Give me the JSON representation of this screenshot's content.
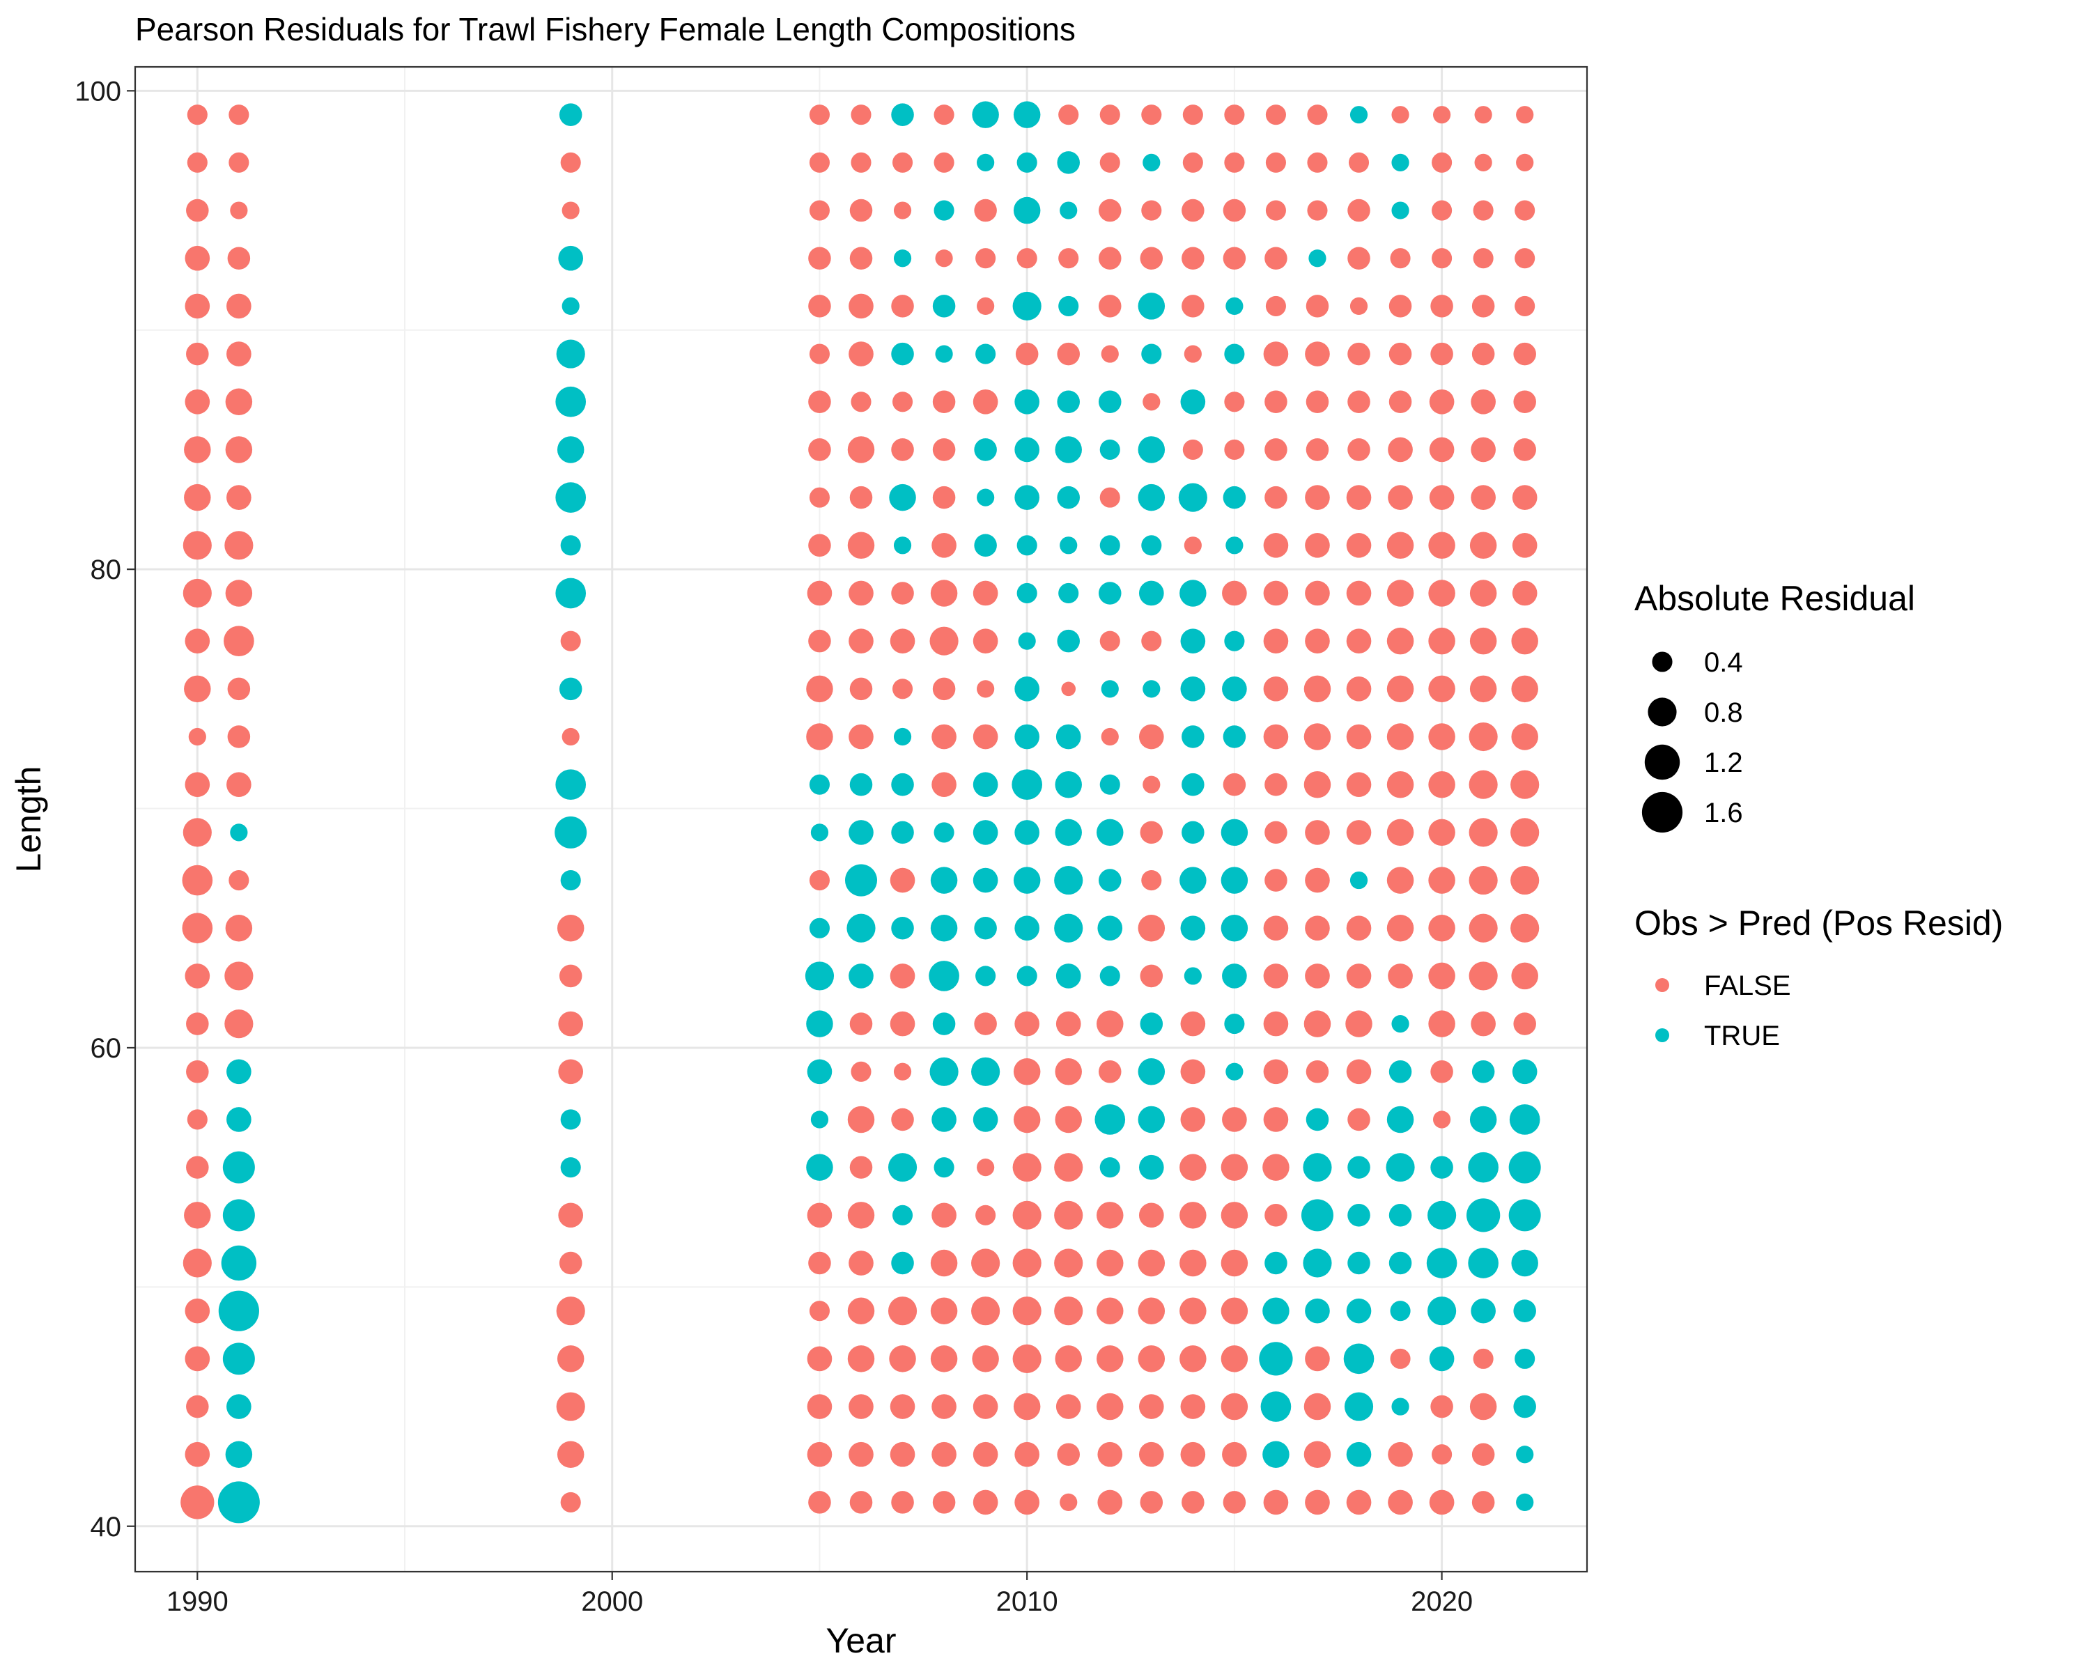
{
  "chart_data": {
    "type": "scatter",
    "title": "Pearson Residuals for Trawl Fishery Female Length Compositions",
    "xlabel": "Year",
    "ylabel": "Length",
    "xlim": [
      1988.5,
      2023.5
    ],
    "ylim": [
      38.1,
      101
    ],
    "xticks": [
      "1990",
      "2000",
      "2010",
      "2020"
    ],
    "yticks": [
      "40",
      "60",
      "80",
      "100"
    ],
    "grid": true,
    "legend_position": "right",
    "colors": {
      "FALSE": "#F8766D",
      "TRUE": "#00BFC4",
      "size_key": "#000000"
    },
    "size_legend": {
      "title": "Absolute Residual",
      "values": [
        0.4,
        0.8,
        1.2,
        1.6
      ],
      "labels": [
        "0.4",
        "0.8",
        "1.2",
        "1.6"
      ]
    },
    "color_legend": {
      "title": "Obs > Pred (Pos Resid)",
      "labels": [
        "FALSE",
        "TRUE"
      ]
    },
    "lengths": [
      41,
      43,
      45,
      47,
      49,
      51,
      53,
      55,
      57,
      59,
      61,
      63,
      65,
      67,
      69,
      71,
      73,
      75,
      77,
      79,
      81,
      83,
      85,
      87,
      89,
      91,
      93,
      95,
      97,
      99
    ],
    "series": [
      {
        "year": 1990,
        "r": [
          -1.1,
          -0.6,
          -0.5,
          -0.6,
          -0.6,
          -0.8,
          -0.7,
          -0.5,
          -0.4,
          -0.5,
          -0.5,
          -0.6,
          -0.9,
          -0.9,
          -0.8,
          -0.6,
          -0.3,
          -0.7,
          -0.6,
          -0.8,
          -0.8,
          -0.7,
          -0.7,
          -0.6,
          -0.5,
          -0.6,
          -0.6,
          -0.5,
          -0.4,
          -0.4
        ]
      },
      {
        "year": 1991,
        "r": [
          1.7,
          0.7,
          0.6,
          1.0,
          1.6,
          1.2,
          1.0,
          1.0,
          0.6,
          0.6,
          -0.8,
          -0.8,
          -0.7,
          -0.4,
          0.3,
          -0.6,
          -0.5,
          -0.5,
          -0.9,
          -0.7,
          -0.8,
          -0.6,
          -0.7,
          -0.7,
          -0.6,
          -0.6,
          -0.5,
          -0.3,
          -0.4,
          -0.4
        ]
      },
      {
        "year": 1999,
        "r": [
          -0.4,
          -0.7,
          -0.8,
          -0.7,
          -0.8,
          -0.5,
          -0.6,
          0.4,
          0.4,
          -0.6,
          -0.6,
          -0.5,
          -0.7,
          0.4,
          1.0,
          0.9,
          -0.3,
          0.5,
          -0.4,
          0.9,
          0.4,
          0.9,
          0.7,
          0.9,
          0.8,
          0.3,
          0.6,
          -0.3,
          -0.4,
          0.5
        ]
      },
      {
        "year": 2005,
        "r": [
          -0.5,
          -0.6,
          -0.6,
          -0.6,
          -0.4,
          -0.5,
          -0.6,
          0.7,
          0.3,
          0.6,
          0.7,
          0.8,
          0.4,
          -0.4,
          0.3,
          0.4,
          -0.7,
          -0.7,
          -0.5,
          -0.6,
          -0.5,
          -0.4,
          -0.5,
          -0.5,
          -0.4,
          -0.5,
          -0.5,
          -0.4,
          -0.4,
          -0.4
        ]
      },
      {
        "year": 2006,
        "r": [
          -0.5,
          -0.6,
          -0.6,
          -0.7,
          -0.7,
          -0.6,
          -0.7,
          -0.5,
          -0.7,
          -0.4,
          -0.5,
          0.6,
          0.8,
          1.0,
          0.6,
          0.5,
          -0.6,
          -0.5,
          -0.6,
          -0.6,
          -0.7,
          -0.5,
          -0.7,
          -0.4,
          -0.6,
          -0.6,
          -0.5,
          -0.5,
          -0.4,
          -0.4
        ]
      },
      {
        "year": 2007,
        "r": [
          -0.5,
          -0.6,
          -0.6,
          -0.7,
          -0.8,
          0.5,
          0.4,
          0.8,
          -0.5,
          -0.3,
          -0.6,
          -0.6,
          0.5,
          -0.6,
          0.5,
          0.5,
          0.3,
          -0.4,
          -0.6,
          -0.5,
          0.3,
          0.7,
          -0.5,
          -0.4,
          0.5,
          -0.5,
          0.3,
          -0.3,
          -0.4,
          0.5
        ]
      },
      {
        "year": 2008,
        "r": [
          -0.5,
          -0.6,
          -0.6,
          -0.7,
          -0.7,
          -0.7,
          -0.6,
          0.4,
          0.6,
          0.8,
          0.5,
          0.9,
          0.7,
          0.7,
          0.4,
          -0.6,
          -0.6,
          -0.5,
          -0.8,
          -0.7,
          -0.6,
          -0.5,
          -0.5,
          -0.5,
          0.3,
          0.5,
          -0.3,
          0.4,
          -0.4,
          -0.4
        ]
      },
      {
        "year": 2009,
        "r": [
          -0.6,
          -0.6,
          -0.6,
          -0.7,
          -0.8,
          -0.8,
          -0.4,
          -0.3,
          0.6,
          0.8,
          -0.5,
          0.4,
          0.5,
          0.6,
          0.6,
          0.6,
          -0.6,
          -0.3,
          -0.6,
          -0.6,
          0.5,
          0.3,
          0.5,
          -0.6,
          0.4,
          -0.3,
          -0.4,
          -0.5,
          0.3,
          0.7
        ]
      },
      {
        "year": 2010,
        "r": [
          -0.6,
          -0.6,
          -0.7,
          -0.8,
          -0.8,
          -0.8,
          -0.8,
          -0.8,
          -0.7,
          -0.7,
          -0.6,
          0.4,
          0.6,
          0.7,
          0.6,
          0.9,
          0.6,
          0.6,
          0.3,
          0.4,
          0.4,
          0.6,
          0.6,
          0.6,
          -0.5,
          0.8,
          -0.4,
          0.7,
          0.4,
          0.7
        ]
      },
      {
        "year": 2011,
        "r": [
          -0.3,
          -0.5,
          -0.6,
          -0.7,
          -0.8,
          -0.8,
          -0.8,
          -0.8,
          -0.7,
          -0.7,
          -0.6,
          0.6,
          0.8,
          0.8,
          0.7,
          0.7,
          0.6,
          -0.2,
          0.5,
          0.4,
          0.3,
          0.5,
          0.7,
          0.5,
          -0.5,
          0.4,
          -0.4,
          0.3,
          0.5,
          -0.4
        ]
      },
      {
        "year": 2012,
        "r": [
          -0.6,
          -0.6,
          -0.7,
          -0.7,
          -0.7,
          -0.7,
          -0.7,
          0.4,
          0.9,
          -0.5,
          -0.7,
          0.4,
          0.6,
          0.5,
          0.7,
          0.4,
          -0.3,
          0.3,
          -0.4,
          0.5,
          0.4,
          -0.4,
          0.4,
          0.5,
          -0.3,
          -0.5,
          -0.5,
          -0.5,
          -0.4,
          -0.4
        ]
      },
      {
        "year": 2013,
        "r": [
          -0.5,
          -0.6,
          -0.6,
          -0.7,
          -0.7,
          -0.7,
          -0.6,
          0.6,
          0.7,
          0.7,
          0.5,
          -0.5,
          -0.7,
          -0.4,
          -0.5,
          -0.3,
          -0.6,
          0.3,
          -0.4,
          0.6,
          0.4,
          0.7,
          0.7,
          -0.3,
          0.4,
          0.7,
          -0.5,
          -0.4,
          0.3,
          -0.4
        ]
      },
      {
        "year": 2014,
        "r": [
          -0.5,
          -0.6,
          -0.6,
          -0.7,
          -0.7,
          -0.7,
          -0.7,
          -0.7,
          -0.6,
          -0.6,
          -0.6,
          0.3,
          0.6,
          0.7,
          0.5,
          0.5,
          0.5,
          0.6,
          0.6,
          0.7,
          -0.3,
          0.8,
          -0.4,
          0.6,
          -0.3,
          -0.5,
          -0.5,
          -0.5,
          -0.4,
          -0.4
        ]
      },
      {
        "year": 2015,
        "r": [
          -0.5,
          -0.6,
          -0.7,
          -0.7,
          -0.7,
          -0.7,
          -0.7,
          -0.7,
          -0.6,
          0.3,
          0.4,
          0.6,
          0.7,
          0.7,
          0.7,
          -0.5,
          0.5,
          0.6,
          0.4,
          -0.6,
          0.3,
          0.5,
          -0.4,
          -0.4,
          0.4,
          0.3,
          -0.5,
          -0.5,
          -0.4,
          -0.4
        ]
      },
      {
        "year": 2016,
        "r": [
          -0.6,
          0.7,
          0.9,
          1.1,
          0.7,
          0.5,
          -0.5,
          -0.7,
          -0.6,
          -0.6,
          -0.6,
          -0.6,
          -0.6,
          -0.5,
          -0.5,
          -0.5,
          -0.6,
          -0.6,
          -0.6,
          -0.6,
          -0.6,
          -0.5,
          -0.5,
          -0.5,
          -0.6,
          -0.4,
          -0.5,
          -0.4,
          -0.4,
          -0.4
        ]
      },
      {
        "year": 2017,
        "r": [
          -0.6,
          -0.7,
          -0.7,
          -0.6,
          0.6,
          0.8,
          1.0,
          0.8,
          0.5,
          -0.5,
          -0.7,
          -0.6,
          -0.6,
          -0.6,
          -0.6,
          -0.7,
          -0.7,
          -0.7,
          -0.6,
          -0.6,
          -0.6,
          -0.6,
          -0.5,
          -0.5,
          -0.6,
          -0.5,
          0.3,
          -0.4,
          -0.4,
          -0.4
        ]
      },
      {
        "year": 2018,
        "r": [
          -0.6,
          0.6,
          0.8,
          0.9,
          0.6,
          0.5,
          0.5,
          0.5,
          -0.5,
          -0.6,
          -0.7,
          -0.6,
          -0.6,
          0.3,
          -0.6,
          -0.6,
          -0.6,
          -0.6,
          -0.6,
          -0.6,
          -0.6,
          -0.6,
          -0.5,
          -0.5,
          -0.5,
          -0.3,
          -0.5,
          -0.5,
          -0.4,
          0.3
        ]
      },
      {
        "year": 2019,
        "r": [
          -0.6,
          -0.6,
          0.3,
          -0.4,
          0.4,
          0.5,
          0.5,
          0.8,
          0.7,
          0.5,
          0.3,
          -0.6,
          -0.7,
          -0.7,
          -0.7,
          -0.7,
          -0.7,
          -0.7,
          -0.7,
          -0.7,
          -0.7,
          -0.6,
          -0.6,
          -0.5,
          -0.5,
          -0.5,
          -0.4,
          0.3,
          0.3,
          -0.3
        ]
      },
      {
        "year": 2020,
        "r": [
          -0.6,
          -0.4,
          -0.5,
          0.6,
          0.8,
          0.9,
          0.8,
          0.5,
          -0.3,
          -0.5,
          -0.7,
          -0.7,
          -0.7,
          -0.7,
          -0.7,
          -0.7,
          -0.7,
          -0.7,
          -0.7,
          -0.7,
          -0.7,
          -0.6,
          -0.6,
          -0.6,
          -0.5,
          -0.5,
          -0.4,
          -0.4,
          -0.4,
          -0.3
        ]
      },
      {
        "year": 2021,
        "r": [
          -0.5,
          -0.5,
          -0.7,
          -0.4,
          0.6,
          0.9,
          1.1,
          0.9,
          0.7,
          0.5,
          -0.6,
          -0.8,
          -0.8,
          -0.8,
          -0.8,
          -0.8,
          -0.8,
          -0.7,
          -0.7,
          -0.7,
          -0.7,
          -0.6,
          -0.6,
          -0.6,
          -0.5,
          -0.5,
          -0.4,
          -0.4,
          -0.3,
          -0.3
        ]
      },
      {
        "year": 2022,
        "r": [
          0.3,
          0.3,
          0.5,
          0.4,
          0.5,
          0.7,
          1.0,
          1.0,
          0.9,
          0.6,
          -0.5,
          -0.7,
          -0.8,
          -0.8,
          -0.8,
          -0.8,
          -0.7,
          -0.7,
          -0.7,
          -0.6,
          -0.6,
          -0.6,
          -0.5,
          -0.5,
          -0.5,
          -0.4,
          -0.4,
          -0.4,
          -0.3,
          -0.3
        ]
      }
    ]
  }
}
